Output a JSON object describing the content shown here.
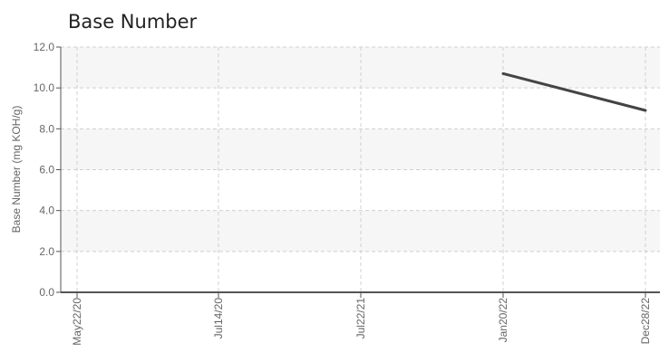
{
  "chart_data": {
    "type": "line",
    "title": "Base Number",
    "ylabel": "Base Number (mg KOH/g)",
    "xlabel": "",
    "categories": [
      "May22/20",
      "Jul14/20",
      "Jul22/21",
      "Jan20/22",
      "Dec28/22"
    ],
    "ylim": [
      0,
      12
    ],
    "yticks": [
      "0.0",
      "2.0",
      "4.0",
      "6.0",
      "8.0",
      "10.0",
      "12.0"
    ],
    "series": [
      {
        "values": [
          null,
          null,
          null,
          10.7,
          8.9
        ]
      }
    ],
    "grid": true,
    "legend": "none",
    "colors": {
      "line": "#444444",
      "band": "#f6f6f6",
      "grid": "#d0d0d0",
      "axis": "#555555",
      "text": "#666666"
    }
  }
}
